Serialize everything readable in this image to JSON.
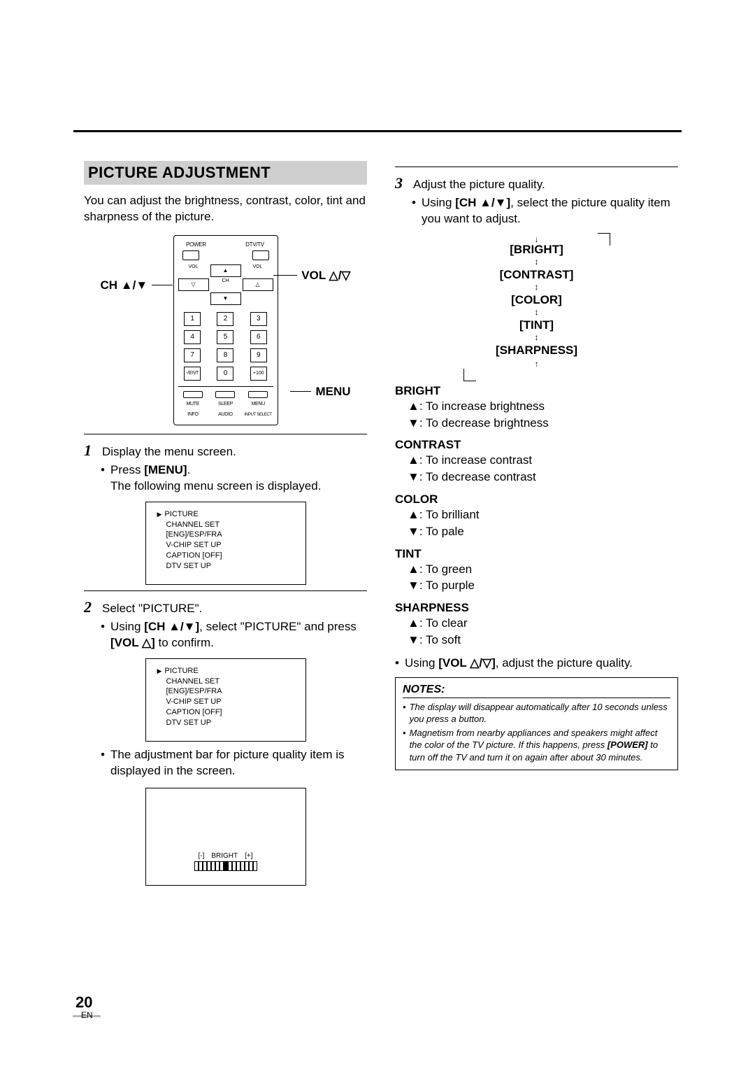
{
  "page": {
    "number": "20",
    "lang": "EN"
  },
  "section_title": "PICTURE ADJUSTMENT",
  "intro": "You can adjust the brightness, contrast, color, tint and sharpness of the picture.",
  "remote": {
    "top_left_label": "POWER",
    "top_right_label": "DTV/TV",
    "nav_labels": {
      "vol_l": "VOL",
      "vol_r": "VOL",
      "ch": "CH"
    },
    "numpad": [
      "1",
      "2",
      "3",
      "4",
      "5",
      "6",
      "7",
      "8",
      "9",
      "-/ENT",
      "0",
      "+100"
    ],
    "bottom": [
      "MUTE",
      "SLEEP",
      "MENU",
      "INFO",
      "AUDIO",
      "INPUT SELECT"
    ],
    "callouts": {
      "vol": "VOL △/▽",
      "ch": "CH ▲/▼",
      "menu": "MENU"
    }
  },
  "step1": {
    "num": "1",
    "text": "Display the menu screen.",
    "bullet_pre": "Press ",
    "bullet_key": "[MENU]",
    "bullet_post": ".",
    "cont": "The following menu screen is displayed."
  },
  "menu_items": [
    "PICTURE",
    "CHANNEL SET",
    "[ENG]/ESP/FRA",
    "V-CHIP SET UP",
    "CAPTION [OFF]",
    "DTV SET UP"
  ],
  "step2": {
    "num": "2",
    "text": "Select \"PICTURE\".",
    "bullet_pre": "Using ",
    "bullet_key1": "[CH ▲/▼]",
    "bullet_mid": ", select \"PICTURE\" and press ",
    "bullet_key2": "[VOL △]",
    "bullet_post": " to confirm.",
    "after": "The adjustment bar for picture quality item is displayed in the screen."
  },
  "adjust": {
    "minus": "[-]",
    "label": "BRIGHT",
    "plus": "[+]"
  },
  "step3": {
    "num": "3",
    "text": "Adjust the picture quality.",
    "bullet_pre": "Using ",
    "bullet_key": "[CH ▲/▼]",
    "bullet_post": ", select the picture quality item you want to adjust."
  },
  "cycle": [
    "[BRIGHT]",
    "[CONTRAST]",
    "[COLOR]",
    "[TINT]",
    "[SHARPNESS]"
  ],
  "defs": {
    "BRIGHT": {
      "up": ": To increase brightness",
      "down": ": To decrease brightness"
    },
    "CONTRAST": {
      "up": ": To increase contrast",
      "down": ": To decrease contrast"
    },
    "COLOR": {
      "up": ": To brilliant",
      "down": ": To pale"
    },
    "TINT": {
      "up": ": To green",
      "down": ": To purple"
    },
    "SHARPNESS": {
      "up": ": To clear",
      "down": ": To soft"
    }
  },
  "final_bullet_pre": "Using ",
  "final_bullet_key": "[VOL △/▽]",
  "final_bullet_post": ", adjust the picture quality.",
  "notes": {
    "title": "NOTES:",
    "items": [
      "The display will disappear automatically after 10 seconds unless you press a button.",
      "Magnetism from nearby appliances and speakers might affect the color of the TV picture. If this happens, press [POWER] to turn off the TV and turn it on again after about 30 minutes."
    ]
  },
  "heads": {
    "bright": "BRIGHT",
    "contrast": "CONTRAST",
    "color": "COLOR",
    "tint": "TINT",
    "sharpness": "SHARPNESS"
  }
}
